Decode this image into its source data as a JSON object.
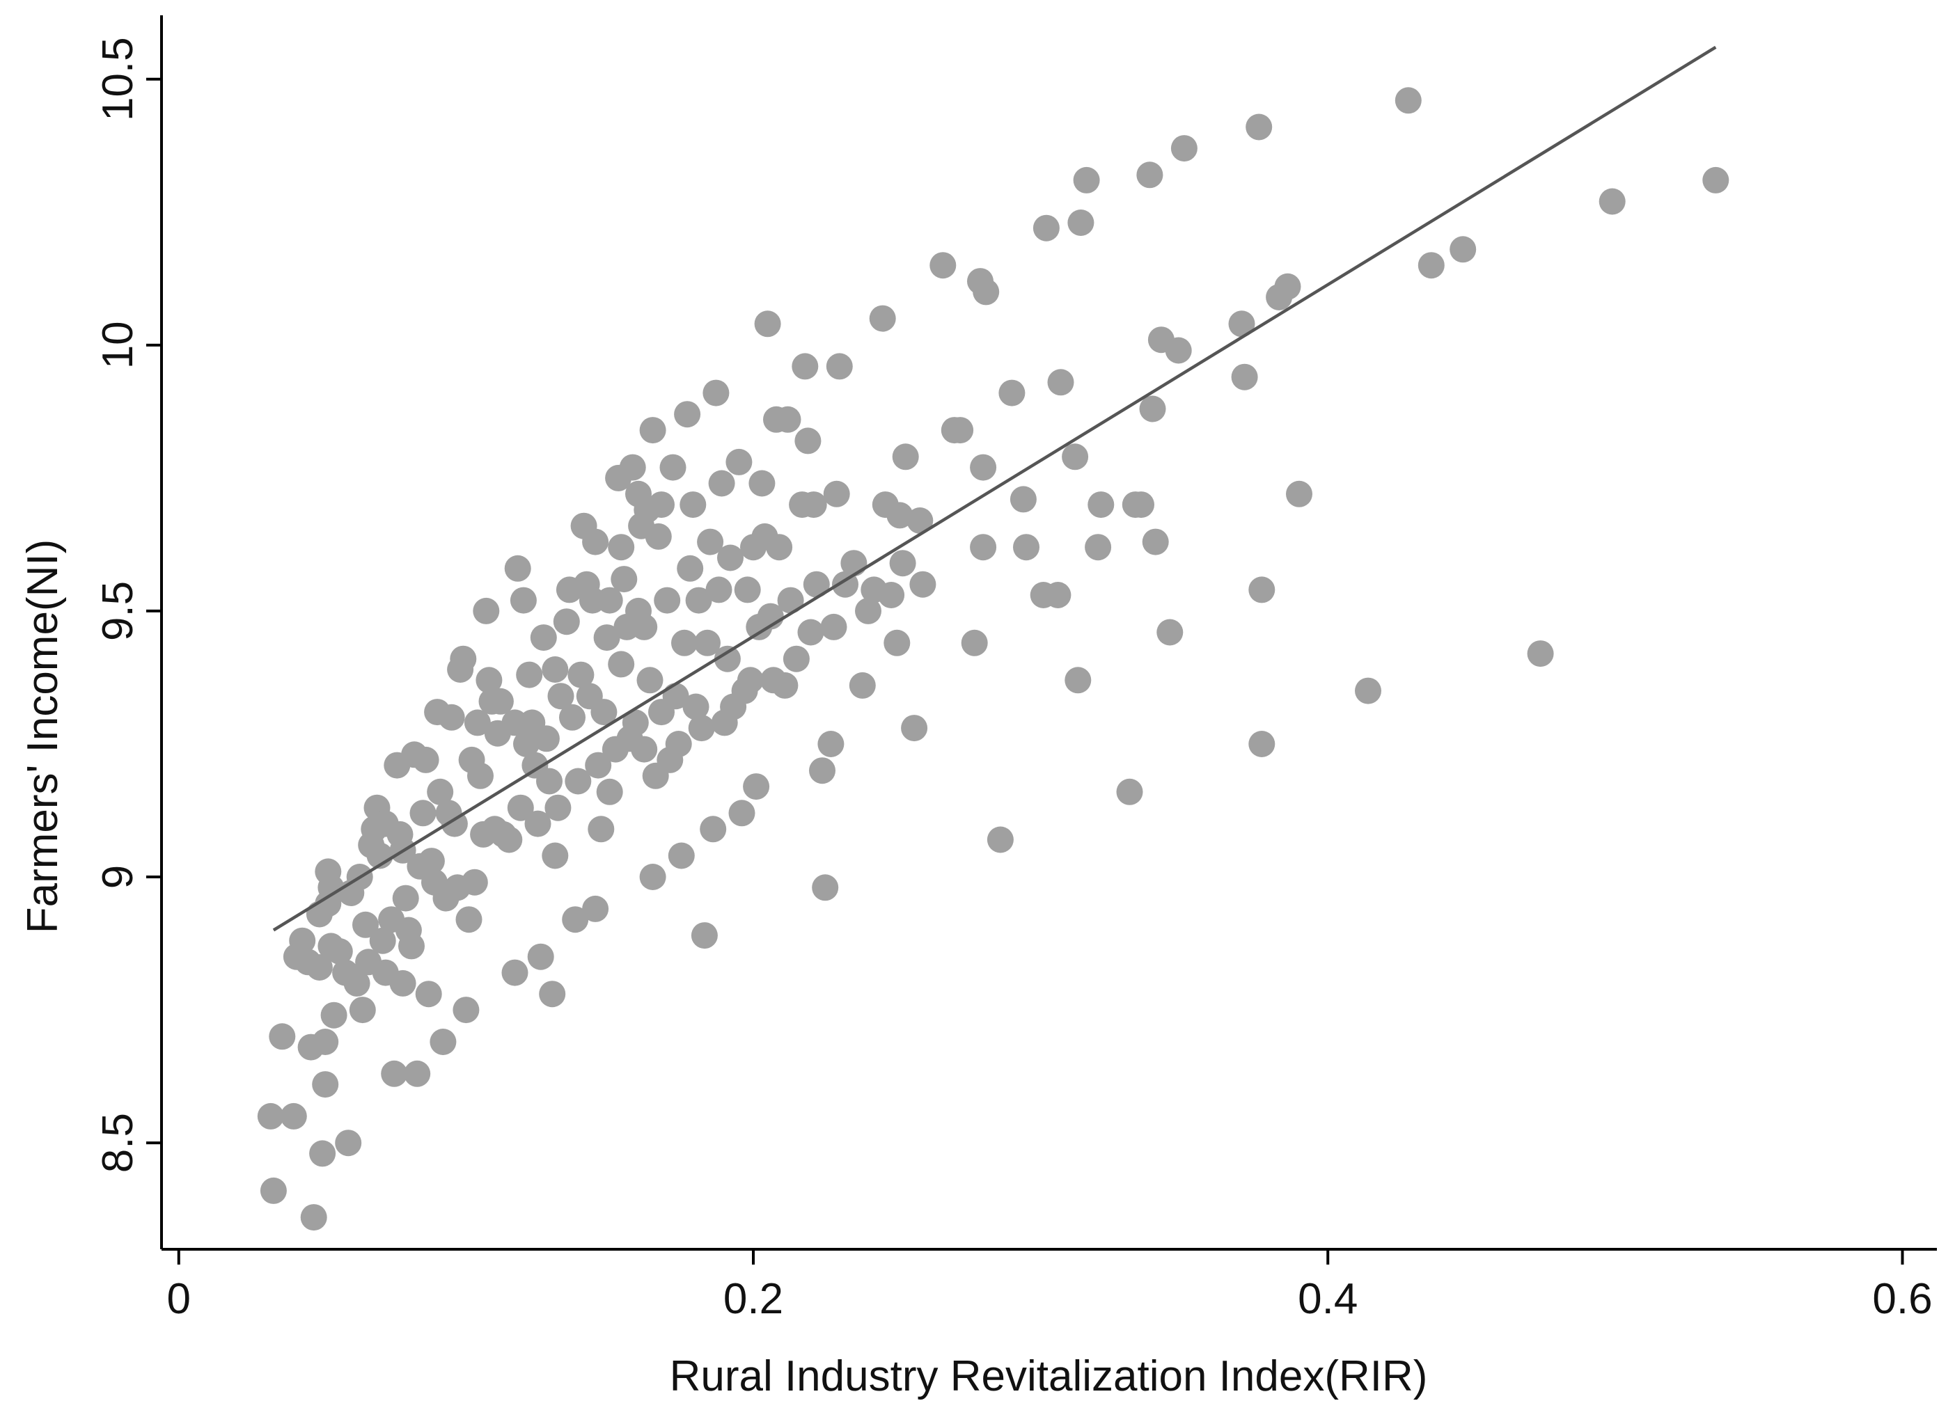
{
  "chart_data": {
    "type": "scatter",
    "title": "",
    "xlabel": "Rural Industry Revitalization Index(RIR)",
    "ylabel": "Farmers' Income(NI)",
    "xlim": [
      -0.006,
      0.612
    ],
    "ylim": [
      8.3,
      10.62
    ],
    "x_ticks": [
      0,
      0.2,
      0.4,
      0.6
    ],
    "x_tick_labels": [
      "0",
      "0.2",
      "0.4",
      "0.6"
    ],
    "y_ticks": [
      8.5,
      9,
      9.5,
      10,
      10.5
    ],
    "y_tick_labels": [
      "8.5",
      "9",
      "9.5",
      "10",
      "10.5"
    ],
    "grid": false,
    "colors": {
      "points": "#a0a0a0",
      "fit_line": "#555555",
      "axes": "#000000"
    },
    "fit_line": {
      "x": [
        0.033,
        0.535
      ],
      "y": [
        8.9,
        10.56
      ]
    },
    "points": [
      [
        0.032,
        8.55
      ],
      [
        0.033,
        8.41
      ],
      [
        0.036,
        8.7
      ],
      [
        0.04,
        8.55
      ],
      [
        0.041,
        8.85
      ],
      [
        0.043,
        8.88
      ],
      [
        0.045,
        8.84
      ],
      [
        0.046,
        8.68
      ],
      [
        0.047,
        8.36
      ],
      [
        0.049,
        8.83
      ],
      [
        0.049,
        8.93
      ],
      [
        0.05,
        8.48
      ],
      [
        0.051,
        8.69
      ],
      [
        0.051,
        8.61
      ],
      [
        0.052,
        8.95
      ],
      [
        0.052,
        9.01
      ],
      [
        0.053,
        8.87
      ],
      [
        0.053,
        8.98
      ],
      [
        0.054,
        8.74
      ],
      [
        0.056,
        8.86
      ],
      [
        0.058,
        8.82
      ],
      [
        0.059,
        8.5
      ],
      [
        0.06,
        8.97
      ],
      [
        0.062,
        8.8
      ],
      [
        0.063,
        9.0
      ],
      [
        0.064,
        8.75
      ],
      [
        0.065,
        8.91
      ],
      [
        0.066,
        8.84
      ],
      [
        0.067,
        9.06
      ],
      [
        0.068,
        9.09
      ],
      [
        0.069,
        9.13
      ],
      [
        0.07,
        9.04
      ],
      [
        0.071,
        8.88
      ],
      [
        0.072,
        8.82
      ],
      [
        0.072,
        9.1
      ],
      [
        0.074,
        8.92
      ],
      [
        0.075,
        8.63
      ],
      [
        0.076,
        9.21
      ],
      [
        0.077,
        9.08
      ],
      [
        0.078,
        8.8
      ],
      [
        0.078,
        9.05
      ],
      [
        0.079,
        8.96
      ],
      [
        0.08,
        8.9
      ],
      [
        0.081,
        8.87
      ],
      [
        0.082,
        9.23
      ],
      [
        0.083,
        8.63
      ],
      [
        0.084,
        9.02
      ],
      [
        0.085,
        9.12
      ],
      [
        0.086,
        9.22
      ],
      [
        0.087,
        8.78
      ],
      [
        0.088,
        9.03
      ],
      [
        0.089,
        8.99
      ],
      [
        0.09,
        9.31
      ],
      [
        0.091,
        9.16
      ],
      [
        0.092,
        8.69
      ],
      [
        0.093,
        8.96
      ],
      [
        0.094,
        9.12
      ],
      [
        0.095,
        9.3
      ],
      [
        0.096,
        9.1
      ],
      [
        0.097,
        8.98
      ],
      [
        0.098,
        9.39
      ],
      [
        0.099,
        9.41
      ],
      [
        0.1,
        8.75
      ],
      [
        0.101,
        8.92
      ],
      [
        0.102,
        9.22
      ],
      [
        0.103,
        8.99
      ],
      [
        0.104,
        9.29
      ],
      [
        0.105,
        9.19
      ],
      [
        0.106,
        9.08
      ],
      [
        0.107,
        9.5
      ],
      [
        0.108,
        9.37
      ],
      [
        0.109,
        9.33
      ],
      [
        0.11,
        9.09
      ],
      [
        0.111,
        9.27
      ],
      [
        0.112,
        9.33
      ],
      [
        0.113,
        9.08
      ],
      [
        0.115,
        9.07
      ],
      [
        0.117,
        8.82
      ],
      [
        0.117,
        9.29
      ],
      [
        0.118,
        9.58
      ],
      [
        0.119,
        9.13
      ],
      [
        0.12,
        9.52
      ],
      [
        0.121,
        9.25
      ],
      [
        0.122,
        9.38
      ],
      [
        0.123,
        9.29
      ],
      [
        0.124,
        9.21
      ],
      [
        0.125,
        9.1
      ],
      [
        0.126,
        8.85
      ],
      [
        0.127,
        9.45
      ],
      [
        0.128,
        9.26
      ],
      [
        0.129,
        9.18
      ],
      [
        0.13,
        8.78
      ],
      [
        0.131,
        9.39
      ],
      [
        0.131,
        9.04
      ],
      [
        0.132,
        9.13
      ],
      [
        0.133,
        9.34
      ],
      [
        0.135,
        9.48
      ],
      [
        0.136,
        9.54
      ],
      [
        0.137,
        9.3
      ],
      [
        0.138,
        8.92
      ],
      [
        0.139,
        9.18
      ],
      [
        0.14,
        9.38
      ],
      [
        0.141,
        9.66
      ],
      [
        0.142,
        9.55
      ],
      [
        0.143,
        9.34
      ],
      [
        0.144,
        9.52
      ],
      [
        0.145,
        9.63
      ],
      [
        0.145,
        8.94
      ],
      [
        0.146,
        9.21
      ],
      [
        0.147,
        9.09
      ],
      [
        0.148,
        9.31
      ],
      [
        0.149,
        9.45
      ],
      [
        0.15,
        9.52
      ],
      [
        0.15,
        9.16
      ],
      [
        0.152,
        9.24
      ],
      [
        0.153,
        9.75
      ],
      [
        0.154,
        9.4
      ],
      [
        0.154,
        9.62
      ],
      [
        0.155,
        9.56
      ],
      [
        0.156,
        9.47
      ],
      [
        0.157,
        9.26
      ],
      [
        0.158,
        9.77
      ],
      [
        0.159,
        9.29
      ],
      [
        0.16,
        9.5
      ],
      [
        0.16,
        9.72
      ],
      [
        0.161,
        9.66
      ],
      [
        0.162,
        9.47
      ],
      [
        0.162,
        9.24
      ],
      [
        0.163,
        9.69
      ],
      [
        0.164,
        9.37
      ],
      [
        0.165,
        9.0
      ],
      [
        0.165,
        9.84
      ],
      [
        0.166,
        9.19
      ],
      [
        0.167,
        9.64
      ],
      [
        0.168,
        9.31
      ],
      [
        0.168,
        9.7
      ],
      [
        0.17,
        9.52
      ],
      [
        0.171,
        9.22
      ],
      [
        0.172,
        9.77
      ],
      [
        0.173,
        9.34
      ],
      [
        0.174,
        9.25
      ],
      [
        0.175,
        9.04
      ],
      [
        0.176,
        9.44
      ],
      [
        0.177,
        9.87
      ],
      [
        0.178,
        9.58
      ],
      [
        0.179,
        9.7
      ],
      [
        0.18,
        9.32
      ],
      [
        0.181,
        9.52
      ],
      [
        0.182,
        9.28
      ],
      [
        0.183,
        8.89
      ],
      [
        0.184,
        9.44
      ],
      [
        0.185,
        9.63
      ],
      [
        0.186,
        9.09
      ],
      [
        0.187,
        9.91
      ],
      [
        0.188,
        9.54
      ],
      [
        0.189,
        9.74
      ],
      [
        0.19,
        9.29
      ],
      [
        0.191,
        9.41
      ],
      [
        0.192,
        9.6
      ],
      [
        0.193,
        9.32
      ],
      [
        0.195,
        9.78
      ],
      [
        0.196,
        9.12
      ],
      [
        0.197,
        9.35
      ],
      [
        0.198,
        9.54
      ],
      [
        0.199,
        9.37
      ],
      [
        0.2,
        9.62
      ],
      [
        0.201,
        9.17
      ],
      [
        0.202,
        9.47
      ],
      [
        0.203,
        9.74
      ],
      [
        0.204,
        9.64
      ],
      [
        0.205,
        10.04
      ],
      [
        0.206,
        9.49
      ],
      [
        0.207,
        9.37
      ],
      [
        0.208,
        9.86
      ],
      [
        0.209,
        9.62
      ],
      [
        0.211,
        9.36
      ],
      [
        0.212,
        9.86
      ],
      [
        0.213,
        9.52
      ],
      [
        0.215,
        9.41
      ],
      [
        0.217,
        9.7
      ],
      [
        0.218,
        9.96
      ],
      [
        0.219,
        9.82
      ],
      [
        0.22,
        9.46
      ],
      [
        0.221,
        9.7
      ],
      [
        0.222,
        9.55
      ],
      [
        0.224,
        9.2
      ],
      [
        0.225,
        8.98
      ],
      [
        0.227,
        9.25
      ],
      [
        0.228,
        9.47
      ],
      [
        0.229,
        9.72
      ],
      [
        0.23,
        9.96
      ],
      [
        0.232,
        9.55
      ],
      [
        0.235,
        9.59
      ],
      [
        0.238,
        9.36
      ],
      [
        0.24,
        9.5
      ],
      [
        0.242,
        9.54
      ],
      [
        0.245,
        10.05
      ],
      [
        0.246,
        9.7
      ],
      [
        0.248,
        9.53
      ],
      [
        0.25,
        9.44
      ],
      [
        0.251,
        9.68
      ],
      [
        0.252,
        9.59
      ],
      [
        0.253,
        9.79
      ],
      [
        0.256,
        9.28
      ],
      [
        0.258,
        9.67
      ],
      [
        0.259,
        9.55
      ],
      [
        0.266,
        10.15
      ],
      [
        0.27,
        9.84
      ],
      [
        0.272,
        9.84
      ],
      [
        0.277,
        9.44
      ],
      [
        0.279,
        10.12
      ],
      [
        0.28,
        9.77
      ],
      [
        0.28,
        9.62
      ],
      [
        0.281,
        10.1
      ],
      [
        0.286,
        9.07
      ],
      [
        0.29,
        9.91
      ],
      [
        0.294,
        9.71
      ],
      [
        0.295,
        9.62
      ],
      [
        0.301,
        9.53
      ],
      [
        0.302,
        10.22
      ],
      [
        0.306,
        9.53
      ],
      [
        0.307,
        9.93
      ],
      [
        0.312,
        9.79
      ],
      [
        0.313,
        9.37
      ],
      [
        0.314,
        10.23
      ],
      [
        0.316,
        10.31
      ],
      [
        0.32,
        9.62
      ],
      [
        0.321,
        9.7
      ],
      [
        0.331,
        9.16
      ],
      [
        0.333,
        9.7
      ],
      [
        0.335,
        9.7
      ],
      [
        0.338,
        10.32
      ],
      [
        0.339,
        9.88
      ],
      [
        0.34,
        9.63
      ],
      [
        0.342,
        10.01
      ],
      [
        0.345,
        9.46
      ],
      [
        0.348,
        9.99
      ],
      [
        0.35,
        10.37
      ],
      [
        0.37,
        10.04
      ],
      [
        0.371,
        9.94
      ],
      [
        0.376,
        10.41
      ],
      [
        0.377,
        9.25
      ],
      [
        0.377,
        9.54
      ],
      [
        0.383,
        10.09
      ],
      [
        0.386,
        10.11
      ],
      [
        0.39,
        9.72
      ],
      [
        0.414,
        9.35
      ],
      [
        0.428,
        10.46
      ],
      [
        0.436,
        10.15
      ],
      [
        0.447,
        10.18
      ],
      [
        0.474,
        9.42
      ],
      [
        0.499,
        10.27
      ],
      [
        0.535,
        10.31
      ]
    ]
  }
}
